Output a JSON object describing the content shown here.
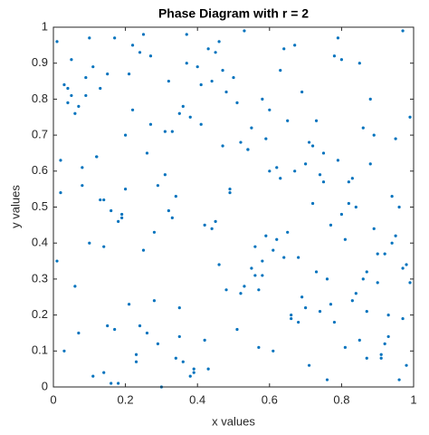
{
  "chart_data": {
    "type": "scatter",
    "title": "Phase Diagram with r = 2",
    "x_label": "x values",
    "y_label": "y values",
    "xlim": [
      0,
      1
    ],
    "ylim": [
      0,
      1
    ],
    "xticks": [
      0,
      0.2,
      0.4,
      0.6,
      0.8,
      1
    ],
    "yticks": [
      0,
      0.1,
      0.2,
      0.3,
      0.4,
      0.5,
      0.6,
      0.7,
      0.8,
      0.9,
      1
    ],
    "grid": false,
    "series": [
      {
        "color": "#0072BD",
        "x": [
          0.12,
          0.87,
          0.45,
          0.33,
          0.91,
          0.06,
          0.58,
          0.74,
          0.29,
          0.63,
          0.81,
          0.17,
          0.52,
          0.95,
          0.38,
          0.02,
          0.69,
          0.24,
          0.77,
          0.41,
          0.56,
          0.09,
          0.83,
          0.35,
          0.67,
          0.14,
          0.98,
          0.47,
          0.21,
          0.72,
          0.04,
          0.61,
          0.89,
          0.27,
          0.53,
          0.79,
          0.16,
          0.44,
          0.92,
          0.31,
          0.66,
          0.08,
          0.85,
          0.39,
          0.19,
          0.73,
          0.55,
          0.97,
          0.26,
          0.62,
          0.13,
          0.48,
          0.84,
          0.36,
          0.71,
          0.01,
          0.59,
          0.93,
          0.22,
          0.68,
          0.43,
          0.88,
          0.11,
          0.76,
          0.34,
          0.57,
          0.99,
          0.18,
          0.64,
          0.28,
          0.82,
          0.05,
          0.51,
          0.94,
          0.37,
          0.75,
          0.23,
          0.46,
          0.86,
          0.15,
          0.7,
          0.32,
          0.96,
          0.07,
          0.6,
          0.42,
          0.8,
          0.25,
          0.54,
          0.9,
          0.03,
          0.65,
          0.2,
          0.78,
          0.49,
          0.1,
          0.87,
          0.34,
          0.58,
          0.14,
          0.93,
          0.27,
          0.61,
          0.05,
          0.84,
          0.39,
          0.72,
          0.16,
          0.5,
          0.97,
          0.31,
          0.76,
          0.09,
          0.44,
          0.68,
          0.22,
          0.89,
          0.57,
          0.13,
          0.81,
          0.36,
          0.64,
          0.02,
          0.91,
          0.47,
          0.19,
          0.74,
          0.53,
          0.29,
          0.86,
          0.11,
          0.59,
          0.95,
          0.41,
          0.07,
          0.67,
          0.24,
          0.83,
          0.38,
          0.62,
          0.78,
          0.15,
          0.49,
          0.99,
          0.33,
          0.71,
          0.04,
          0.56,
          0.92,
          0.26,
          0.45,
          0.88,
          0.18,
          0.63,
          0.01,
          0.79,
          0.35,
          0.52,
          0.96,
          0.21,
          0.69,
          0.08,
          0.43,
          0.85,
          0.28,
          0.6,
          0.14,
          0.94,
          0.37,
          0.73,
          0.55,
          0.03,
          0.8,
          0.32,
          0.66,
          0.12,
          0.9,
          0.46,
          0.23,
          0.75,
          0.98,
          0.4,
          0.17,
          0.7,
          0.51,
          0.06,
          0.82,
          0.3,
          0.65,
          0.42,
          0.25,
          0.77,
          0.54,
          0.1,
          0.87,
          0.48,
          0.2,
          0.97,
          0.58,
          0.35
        ],
        "values": [
          0.64,
          0.21,
          0.93,
          0.47,
          0.08,
          0.76,
          0.35,
          0.59,
          0.12,
          0.88,
          0.41,
          0.97,
          0.26,
          0.69,
          0.03,
          0.54,
          0.82,
          0.17,
          0.45,
          0.73,
          0.31,
          0.86,
          0.58,
          0.14,
          0.95,
          0.39,
          0.06,
          0.67,
          0.23,
          0.51,
          0.79,
          0.1,
          0.44,
          0.92,
          0.28,
          0.63,
          0.01,
          0.85,
          0.37,
          0.71,
          0.19,
          0.56,
          0.9,
          0.04,
          0.48,
          0.74,
          0.33,
          0.99,
          0.15,
          0.61,
          0.83,
          0.27,
          0.5,
          0.07,
          0.68,
          0.96,
          0.42,
          0.2,
          0.77,
          0.36,
          0.05,
          0.62,
          0.89,
          0.3,
          0.53,
          0.11,
          0.75,
          0.46,
          0.94,
          0.24,
          0.57,
          0.81,
          0.16,
          0.4,
          0.98,
          0.65,
          0.09,
          0.34,
          0.72,
          0.87,
          0.22,
          0.49,
          0.02,
          0.78,
          0.6,
          0.13,
          0.91,
          0.38,
          0.66,
          0.29,
          0.84,
          0.43,
          0.7,
          0.18,
          0.55,
          0.97,
          0.32,
          0.08,
          0.8,
          0.52,
          0.14,
          0.73,
          0.38,
          0.91,
          0.26,
          0.05,
          0.67,
          0.49,
          0.86,
          0.33,
          0.59,
          0.02,
          0.81,
          0.44,
          0.18,
          0.95,
          0.7,
          0.27,
          0.52,
          0.11,
          0.78,
          0.36,
          0.63,
          0.09,
          0.88,
          0.47,
          0.21,
          0.99,
          0.56,
          0.3,
          0.03,
          0.69,
          0.42,
          0.84,
          0.15,
          0.6,
          0.93,
          0.24,
          0.75,
          0.41,
          0.92,
          0.17,
          0.54,
          0.29,
          0.71,
          0.06,
          0.83,
          0.39,
          0.12,
          0.65,
          0.46,
          0.8,
          0.01,
          0.58,
          0.35,
          0.97,
          0.22,
          0.68,
          0.5,
          0.87,
          0.25,
          0.61,
          0.94,
          0.13,
          0.43,
          0.77,
          0.04,
          0.53,
          0.9,
          0.32,
          0.72,
          0.1,
          0.48,
          0.85,
          0.2,
          0.64,
          0.37,
          0.96,
          0.07,
          0.57,
          0.34,
          0.89,
          0.16,
          0.62,
          0.79,
          0.28,
          0.51,
          0.0,
          0.74,
          0.45,
          0.98,
          0.23,
          0.66,
          0.4,
          0.08,
          0.82,
          0.55,
          0.19,
          0.31,
          0.76
        ]
      }
    ]
  }
}
